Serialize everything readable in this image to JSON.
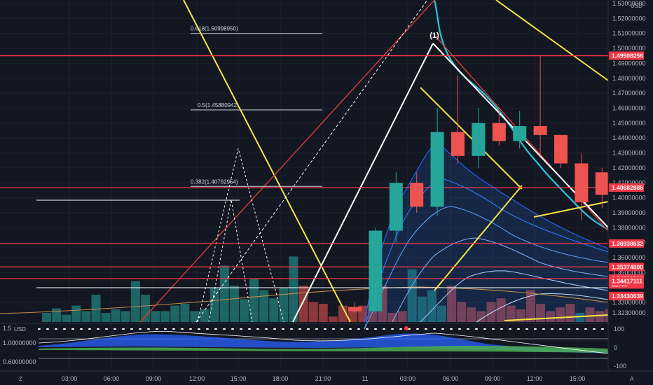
{
  "chart_data": {
    "type": "candlestick",
    "currency_label": "USD",
    "price_ticks": [
      "1.53000000",
      "1.52000000",
      "1.51000000",
      "1.50000000",
      "1.49000000",
      "1.48000000",
      "1.47000000",
      "1.46000000",
      "1.45000000",
      "1.44000000",
      "1.43000000",
      "1.42000000",
      "1.41000000",
      "1.40000000",
      "1.39000000",
      "1.38000000",
      "1.37000000",
      "1.36000000",
      "1.35000000",
      "1.33000000",
      "1.32300000"
    ],
    "price_tick_values": [
      1.53,
      1.52,
      1.51,
      1.5,
      1.49,
      1.48,
      1.47,
      1.46,
      1.45,
      1.44,
      1.43,
      1.42,
      1.41,
      1.4,
      1.39,
      1.38,
      1.37,
      1.36,
      1.35,
      1.33,
      1.323
    ],
    "time_ticks": [
      "03:00",
      "06:00",
      "09:00",
      "12:00",
      "15:00",
      "18:00",
      "21:00",
      "11",
      "03:00",
      "06:00",
      "09:00",
      "12:00",
      "15:00"
    ],
    "price_badges": [
      {
        "text": "1.49508256",
        "price": 1.49508,
        "color": "#f23645"
      },
      {
        "text": "1.40682886",
        "price": 1.40683,
        "color": "#f23645"
      },
      {
        "text": "1.36938632",
        "price": 1.36939,
        "color": "#f23645"
      },
      {
        "text": "1.35374000",
        "price": 1.35374,
        "color": "#f23645"
      },
      {
        "text": "1.34591566",
        "price": 1.34592,
        "color": "#f23645"
      },
      {
        "text": "32:44",
        "price": 1.342,
        "color": "#f23645"
      },
      {
        "text": "1.34417111",
        "price": 1.34417,
        "color": "#f23645"
      },
      {
        "text": "1.33430039",
        "price": 1.3343,
        "color": "#f23645"
      }
    ],
    "fib_levels": [
      {
        "label": "0.618(1.50998950)",
        "price": 1.50999
      },
      {
        "label": "0.5(1.45880942)",
        "price": 1.45881
      },
      {
        "label": "0.382(1.40762954)",
        "price": 1.40763
      }
    ],
    "wave_label": "(1)",
    "horizontal_lines": [
      1.49508,
      1.40683,
      1.36939,
      1.35374,
      1.34592
    ],
    "candles": [
      {
        "t": 0.0,
        "o": 1.327,
        "h": 1.33,
        "l": 1.323,
        "c": 1.324
      },
      {
        "t": 0.55,
        "o": 1.324,
        "h": 1.38,
        "l": 1.323,
        "c": 1.378
      },
      {
        "t": 1.1,
        "o": 1.378,
        "h": 1.417,
        "l": 1.37,
        "c": 1.41
      },
      {
        "t": 1.65,
        "o": 1.41,
        "h": 1.417,
        "l": 1.39,
        "c": 1.394
      },
      {
        "t": 2.2,
        "o": 1.394,
        "h": 1.46,
        "l": 1.388,
        "c": 1.444
      },
      {
        "t": 2.75,
        "o": 1.444,
        "h": 1.482,
        "l": 1.423,
        "c": 1.428
      },
      {
        "t": 3.3,
        "o": 1.428,
        "h": 1.46,
        "l": 1.42,
        "c": 1.45
      },
      {
        "t": 3.85,
        "o": 1.45,
        "h": 1.46,
        "l": 1.435,
        "c": 1.438
      },
      {
        "t": 4.4,
        "o": 1.438,
        "h": 1.458,
        "l": 1.433,
        "c": 1.448
      },
      {
        "t": 4.95,
        "o": 1.448,
        "h": 1.495,
        "l": 1.428,
        "c": 1.442
      },
      {
        "t": 5.5,
        "o": 1.442,
        "h": 1.442,
        "l": 1.42,
        "c": 1.423
      },
      {
        "t": 6.05,
        "o": 1.423,
        "h": 1.43,
        "l": 1.385,
        "c": 1.397
      },
      {
        "t": 6.6,
        "o": 1.417,
        "h": 1.42,
        "l": 1.393,
        "c": 1.402
      },
      {
        "t": 7.15,
        "o": 1.402,
        "h": 1.425,
        "l": 1.397,
        "c": 1.417
      },
      {
        "t": 7.7,
        "o": 1.415,
        "h": 1.42,
        "l": 1.4,
        "c": 1.41
      },
      {
        "t": 8.25,
        "o": 1.41,
        "h": 1.426,
        "l": 1.39,
        "c": 1.401
      },
      {
        "t": 8.8,
        "o": 1.401,
        "h": 1.41,
        "l": 1.378,
        "c": 1.38
      },
      {
        "t": 9.35,
        "o": 1.39,
        "h": 1.392,
        "l": 1.338,
        "c": 1.342
      },
      {
        "t": 9.9,
        "o": 1.355,
        "h": 1.36,
        "l": 1.338,
        "c": 1.342
      },
      {
        "t": 10.45,
        "o": 1.351,
        "h": 1.36,
        "l": 1.345,
        "c": 1.355
      },
      {
        "t": 11.0,
        "o": 1.352,
        "h": 1.38,
        "l": 1.35,
        "c": 1.374
      },
      {
        "t": 11.55,
        "o": 1.356,
        "h": 1.368,
        "l": 1.342,
        "c": 1.347
      },
      {
        "t": 12.1,
        "o": 1.356,
        "h": 1.36,
        "l": 1.334,
        "c": 1.338
      }
    ],
    "volume_bars": [
      {
        "v": 0.1,
        "up": true
      },
      {
        "v": 0.15,
        "up": true
      },
      {
        "v": 0.08,
        "up": true
      },
      {
        "v": 0.18,
        "up": true
      },
      {
        "v": 0.12,
        "up": true
      },
      {
        "v": 0.3,
        "up": true
      },
      {
        "v": 0.1,
        "up": true
      },
      {
        "v": 0.14,
        "up": true
      },
      {
        "v": 0.12,
        "up": true
      },
      {
        "v": 0.45,
        "up": true
      },
      {
        "v": 0.3,
        "up": true
      },
      {
        "v": 0.12,
        "up": true
      },
      {
        "v": 0.12,
        "up": true
      },
      {
        "v": 0.18,
        "up": true
      },
      {
        "v": 0.2,
        "up": true
      },
      {
        "v": 0.12,
        "up": true
      },
      {
        "v": 0.14,
        "up": true
      },
      {
        "v": 0.38,
        "up": true
      },
      {
        "v": 0.62,
        "up": true
      },
      {
        "v": 0.4,
        "up": true
      },
      {
        "v": 0.25,
        "up": true
      },
      {
        "v": 0.48,
        "up": true
      },
      {
        "v": 0.35,
        "up": true
      },
      {
        "v": 0.26,
        "up": true
      },
      {
        "v": 0.38,
        "up": true
      },
      {
        "v": 0.72,
        "up": true
      },
      {
        "v": 0.4,
        "up": false
      },
      {
        "v": 0.22,
        "up": false
      },
      {
        "v": 0.2,
        "up": false
      },
      {
        "v": 0.06,
        "up": false
      },
      {
        "v": 0.18,
        "up": false
      },
      {
        "v": 0.14,
        "up": false
      },
      {
        "v": 0.18,
        "up": false
      },
      {
        "v": 0.25,
        "up": false
      },
      {
        "v": 0.4,
        "up": false
      },
      {
        "v": 0.1,
        "up": false
      },
      {
        "v": 0.12,
        "up": false
      },
      {
        "v": 0.58,
        "up": true
      },
      {
        "v": 0.28,
        "up": true
      },
      {
        "v": 0.35,
        "up": true
      },
      {
        "v": 0.18,
        "up": true
      },
      {
        "v": 0.4,
        "up": false
      },
      {
        "v": 0.22,
        "up": false
      },
      {
        "v": 0.16,
        "up": false
      },
      {
        "v": 0.12,
        "up": false
      },
      {
        "v": 0.22,
        "up": false
      },
      {
        "v": 0.26,
        "up": false
      },
      {
        "v": 0.18,
        "up": false
      },
      {
        "v": 0.14,
        "up": false
      },
      {
        "v": 0.35,
        "up": false
      },
      {
        "v": 0.2,
        "up": false
      },
      {
        "v": 0.12,
        "up": false
      },
      {
        "v": 0.16,
        "up": false
      },
      {
        "v": 0.2,
        "up": false
      },
      {
        "v": 0.1,
        "up": true
      },
      {
        "v": 0.16,
        "up": false
      },
      {
        "v": 0.12,
        "up": false
      },
      {
        "v": 0.14,
        "up": false
      }
    ],
    "sub_panel": {
      "left_ticks": [
        "1.5",
        "1.00000000",
        "0.60000000"
      ],
      "left_label": "USD",
      "right_ticks": [
        "100",
        "0",
        "-100"
      ]
    },
    "footer_letters": [
      "Z",
      "A"
    ]
  }
}
